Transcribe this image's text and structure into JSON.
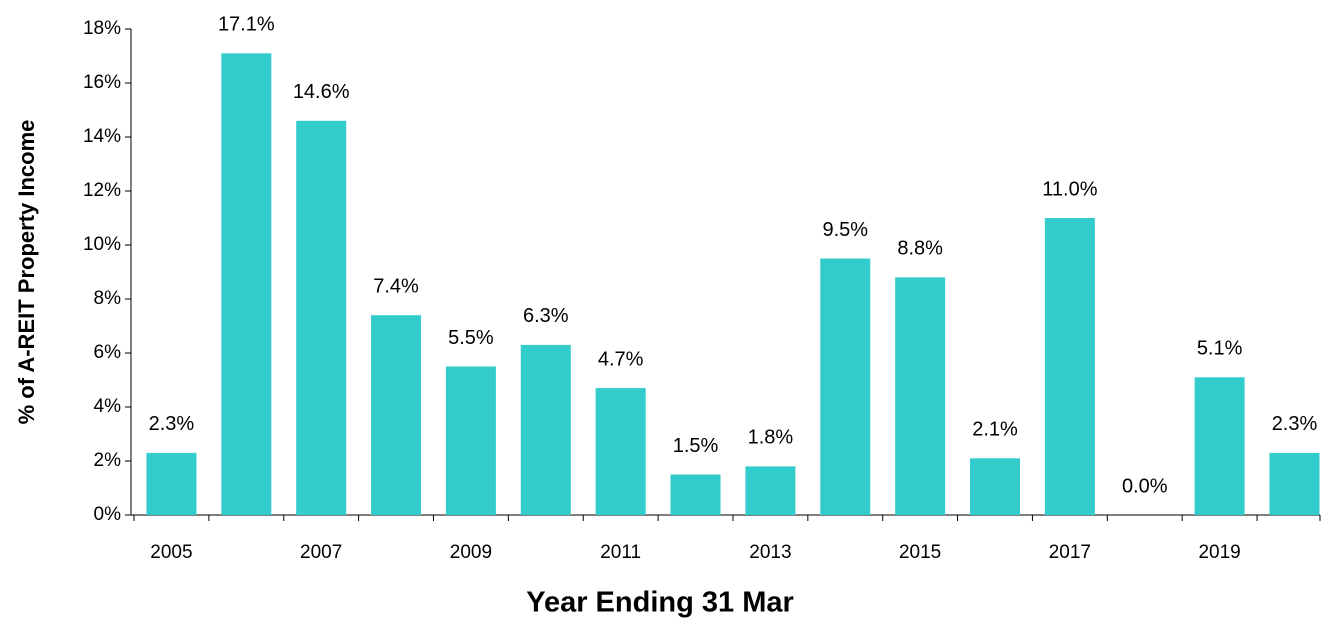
{
  "chart_data": {
    "type": "bar",
    "x_label": "Year Ending 31 Mar",
    "y_label": "% of A-REIT Property Income",
    "categories": [
      "2005",
      null,
      "2007",
      null,
      "2009",
      null,
      "2011",
      null,
      "2013",
      null,
      "2015",
      null,
      "2017",
      null,
      "2019",
      null
    ],
    "values": [
      2.3,
      17.1,
      14.6,
      7.4,
      5.5,
      6.3,
      4.7,
      1.5,
      1.8,
      9.5,
      8.8,
      2.1,
      11.0,
      0.0,
      5.1,
      2.3
    ],
    "value_labels": [
      "2.3%",
      "17.1%",
      "14.6%",
      "7.4%",
      "5.5%",
      "6.3%",
      "4.7%",
      "1.5%",
      "1.8%",
      "9.5%",
      "8.8%",
      "2.1%",
      "11.0%",
      "0.0%",
      "5.1%",
      "2.3%"
    ],
    "color": "#33cccc",
    "ylim": [
      0,
      18
    ],
    "yticks": [
      {
        "value": 0,
        "label": "0%"
      },
      {
        "value": 2,
        "label": "2%"
      },
      {
        "value": 4,
        "label": "4%"
      },
      {
        "value": 6,
        "label": "6%"
      },
      {
        "value": 8,
        "label": "8%"
      },
      {
        "value": 10,
        "label": "10%"
      },
      {
        "value": 12,
        "label": "12%"
      },
      {
        "value": 14,
        "label": "14%"
      },
      {
        "value": 16,
        "label": "16%"
      },
      {
        "value": 18,
        "label": "18%"
      }
    ],
    "grid": false
  }
}
